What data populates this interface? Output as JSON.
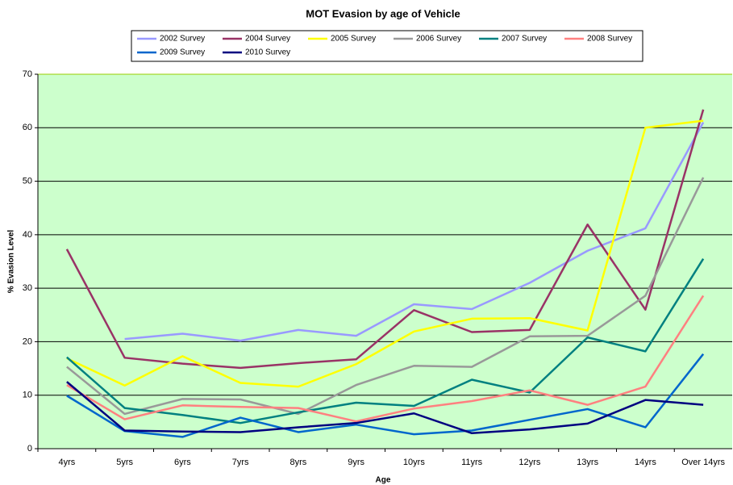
{
  "chart_data": {
    "type": "line",
    "title": "MOT Evasion by age of Vehicle",
    "x_label": "Age",
    "y_label": "% Evasion Level",
    "categories": [
      "4yrs",
      "5yrs",
      "6yrs",
      "7yrs",
      "8yrs",
      "9yrs",
      "10yrs",
      "11yrs",
      "12yrs",
      "13yrs",
      "14yrs",
      "Over 14yrs"
    ],
    "ylim": [
      0,
      70
    ],
    "yticks": [
      0,
      10,
      20,
      30,
      40,
      50,
      60,
      70
    ],
    "grid": true,
    "legend": "top",
    "series": [
      {
        "name": "2002 Survey",
        "color": "#9999ff",
        "values": [
          null,
          20.5,
          21.5,
          20.2,
          22.2,
          21.1,
          27,
          26.1,
          31,
          37,
          41.2,
          61
        ]
      },
      {
        "name": "2004 Survey",
        "color": "#993366",
        "values": [
          37.3,
          17,
          15.9,
          15.1,
          16,
          16.7,
          25.9,
          21.8,
          22.2,
          41.9,
          26,
          63.4
        ]
      },
      {
        "name": "2005 Survey",
        "color": "#ffff00",
        "values": [
          16.9,
          11.8,
          17.3,
          12.3,
          11.6,
          15.8,
          21.9,
          24.3,
          24.4,
          22.1,
          60,
          61.3
        ]
      },
      {
        "name": "2006 Survey",
        "color": "#999999",
        "values": [
          15.3,
          6.5,
          9.3,
          9.2,
          6.5,
          11.9,
          15.5,
          15.3,
          21,
          21.1,
          28.6,
          50.7
        ]
      },
      {
        "name": "2007 Survey",
        "color": "#008080",
        "values": [
          17.1,
          7.6,
          6.3,
          4.8,
          6.8,
          8.6,
          8,
          12.9,
          10.5,
          20.8,
          18.2,
          35.5
        ]
      },
      {
        "name": "2008 Survey",
        "color": "#ff8080",
        "values": [
          11.9,
          5.5,
          8.1,
          7.8,
          7.6,
          5.1,
          7.5,
          8.9,
          10.9,
          8.2,
          11.6,
          28.6
        ]
      },
      {
        "name": "2009 Survey",
        "color": "#0066cc",
        "values": [
          9.9,
          3.3,
          2.2,
          5.8,
          3.1,
          4.5,
          2.7,
          3.4,
          5.4,
          7.4,
          4,
          17.7
        ]
      },
      {
        "name": "2010 Survey",
        "color": "#000080",
        "values": [
          12.5,
          3.4,
          3.2,
          3.1,
          4,
          4.8,
          6.6,
          2.9,
          3.6,
          4.7,
          9.1,
          8.2
        ]
      }
    ]
  }
}
